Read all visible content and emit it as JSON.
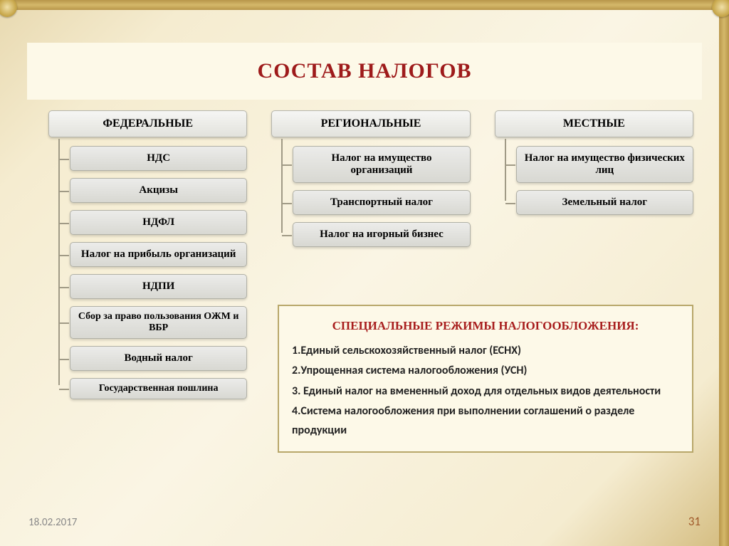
{
  "title": "СОСТАВ НАЛОГОВ",
  "columns": [
    {
      "header": "ФЕДЕРАЛЬНЫЕ",
      "items": [
        "НДС",
        "Акцизы",
        "НДФЛ",
        "Налог на прибыль организаций",
        "НДПИ",
        "Сбор за право пользования ОЖМ и ВБР",
        "Водный налог",
        "Государственная пошлина"
      ]
    },
    {
      "header": "РЕГИОНАЛЬНЫЕ",
      "items": [
        "Налог на имущество организаций",
        "Транспортный налог",
        "Налог на игорный бизнес"
      ]
    },
    {
      "header": "МЕСТНЫЕ",
      "items": [
        "Налог на имущество физических лиц",
        "Земельный налог"
      ]
    }
  ],
  "special": {
    "title": "СПЕЦИАЛЬНЫЕ РЕЖИМЫ НАЛОГООБЛОЖЕНИЯ:",
    "lines": [
      "1.Единый сельскохозяйственный налог (ЕСНХ)",
      "2.Упрощенная система налогообложения (УСН)",
      "3. Единый налог на вмененный доход для отдельных видов деятельности",
      "4.Система налогообложения при выполнении соглашений о разделе продукции"
    ]
  },
  "footer": {
    "date": "18.02.2017",
    "page": "31"
  },
  "style": {
    "title_color": "#9e1b1b",
    "box_bg_top": "#f6f6f4",
    "box_bg_bottom": "#e2e2dc",
    "item_bg_top": "#ececea",
    "item_bg_bottom": "#d8d8d2",
    "connector_color": "#a09a86",
    "special_bg": "#fdf9e8",
    "special_border": "#b8a76a"
  }
}
